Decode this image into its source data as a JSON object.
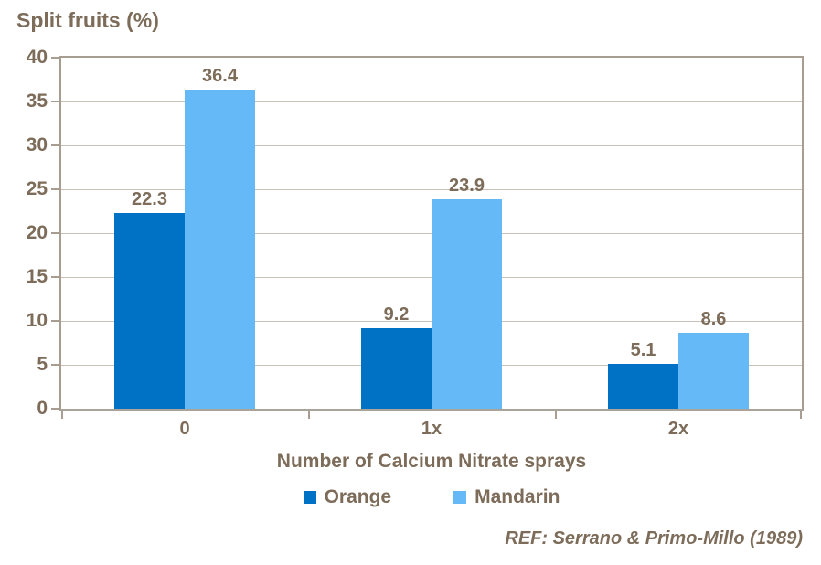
{
  "chart_data": {
    "type": "bar",
    "title": "Split fruits (%)",
    "xlabel": "Number of Calcium Nitrate sprays",
    "ylabel": "Split fruits (%)",
    "categories": [
      "0",
      "1x",
      "2x"
    ],
    "series": [
      {
        "name": "Orange",
        "color": "#0072C5",
        "values": [
          22.3,
          9.2,
          5.1
        ]
      },
      {
        "name": "Mandarin",
        "color": "#66B9F7",
        "values": [
          36.4,
          23.9,
          8.6
        ]
      }
    ],
    "data_labels": [
      "22.3",
      "9.2",
      "5.1",
      "36.4",
      "23.9",
      "8.6"
    ],
    "ylim": [
      0,
      40
    ],
    "ytick_step": 5,
    "ytick_labels": [
      "40",
      "35",
      "30",
      "25",
      "20",
      "15",
      "10",
      "5",
      "0"
    ],
    "grid": true,
    "legend_position": "bottom",
    "annotation": "REF: Serrano & Primo-Millo (1989)"
  },
  "colors": {
    "text": "#7C6C59",
    "gridline": "#C9C0B6",
    "plot_border": "#A79D90",
    "axis_line": "#A9A39A",
    "background": "#FFFFFF"
  }
}
